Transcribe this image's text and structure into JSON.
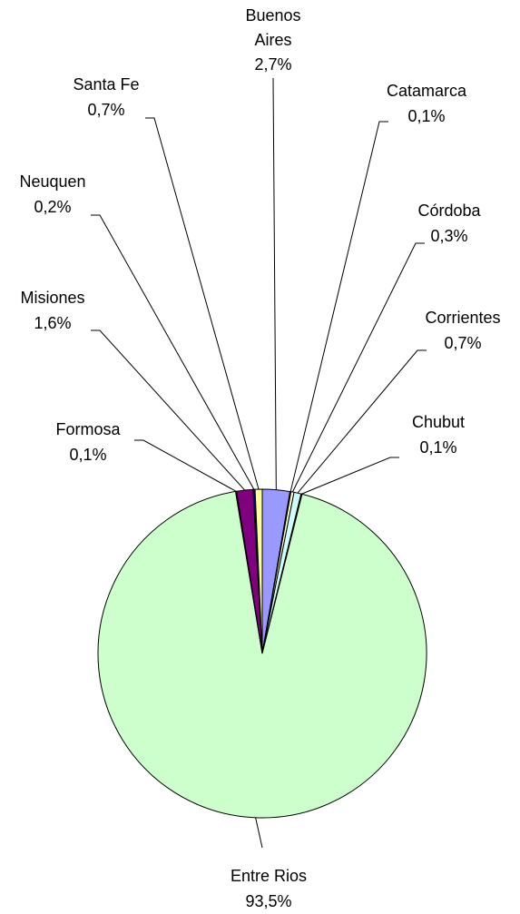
{
  "chart_data": {
    "type": "pie",
    "categories": [
      "Buenos Aires",
      "Catamarca",
      "Córdoba",
      "Corrientes",
      "Chubut",
      "Entre Rios",
      "Formosa",
      "Misiones",
      "Neuquen",
      "Santa Fe"
    ],
    "values": [
      2.7,
      0.1,
      0.3,
      0.7,
      0.1,
      93.5,
      0.1,
      1.6,
      0.2,
      0.7
    ],
    "value_labels": [
      "2,7%",
      "0,1%",
      "0,3%",
      "0,7%",
      "0,1%",
      "93,5%",
      "0,1%",
      "1,6%",
      "0,2%",
      "0,7%"
    ],
    "colors": [
      "#9999ff",
      "#993366",
      "#ffffcc",
      "#ccffff",
      "#660066",
      "#ccffcc",
      "#ff8080",
      "#800080",
      "#000080",
      "#ffff99"
    ]
  }
}
